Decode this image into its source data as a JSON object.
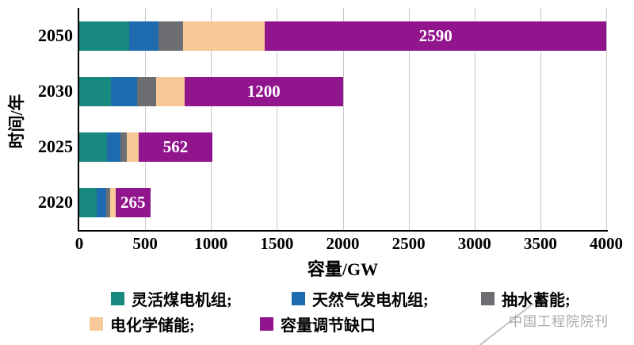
{
  "chart_data": {
    "type": "bar",
    "orientation": "horizontal-stacked",
    "title": "",
    "xlabel": "容量/GW",
    "ylabel": "时间/年",
    "xlim": [
      0,
      4000
    ],
    "xticks": [
      0,
      500,
      1000,
      1500,
      2000,
      2500,
      3000,
      3500,
      4000
    ],
    "grid": true,
    "legend_position": "bottom",
    "categories": [
      "2050",
      "2030",
      "2025",
      "2020"
    ],
    "series": [
      {
        "key": "flexible-coal",
        "name": "灵活煤电机组",
        "color": "#17897e",
        "values": [
          380,
          240,
          210,
          130
        ]
      },
      {
        "key": "natural-gas",
        "name": "天然气发电机组",
        "color": "#1e6bb0",
        "values": [
          220,
          200,
          100,
          75
        ]
      },
      {
        "key": "pumped-storage",
        "name": "抽水蓄能",
        "color": "#6d6e71",
        "values": [
          190,
          145,
          50,
          30
        ]
      },
      {
        "key": "electrochemical-storage",
        "name": "电化学储能",
        "color": "#f8c998",
        "values": [
          620,
          215,
          90,
          40
        ]
      },
      {
        "key": "capacity-gap",
        "name": "容量调节缺口",
        "color": "#91168d",
        "values": [
          2590,
          1200,
          562,
          265
        ]
      }
    ],
    "data_labels": {
      "series": "容量调节缺口",
      "values": [
        "2590",
        "1200",
        "562",
        "265"
      ],
      "color": "#ffffff"
    }
  },
  "legend": {
    "items": [
      {
        "label": "灵活煤电机组;",
        "color": "#17897e"
      },
      {
        "label": "天然气发电机组;",
        "color": "#1e6bb0"
      },
      {
        "label": "抽水蓄能;",
        "color": "#6d6e71"
      },
      {
        "label": "电化学储能;",
        "color": "#f8c998"
      },
      {
        "label": "容量调节缺口",
        "color": "#91168d"
      }
    ]
  },
  "watermark": {
    "text": "中国工程院院刊"
  }
}
